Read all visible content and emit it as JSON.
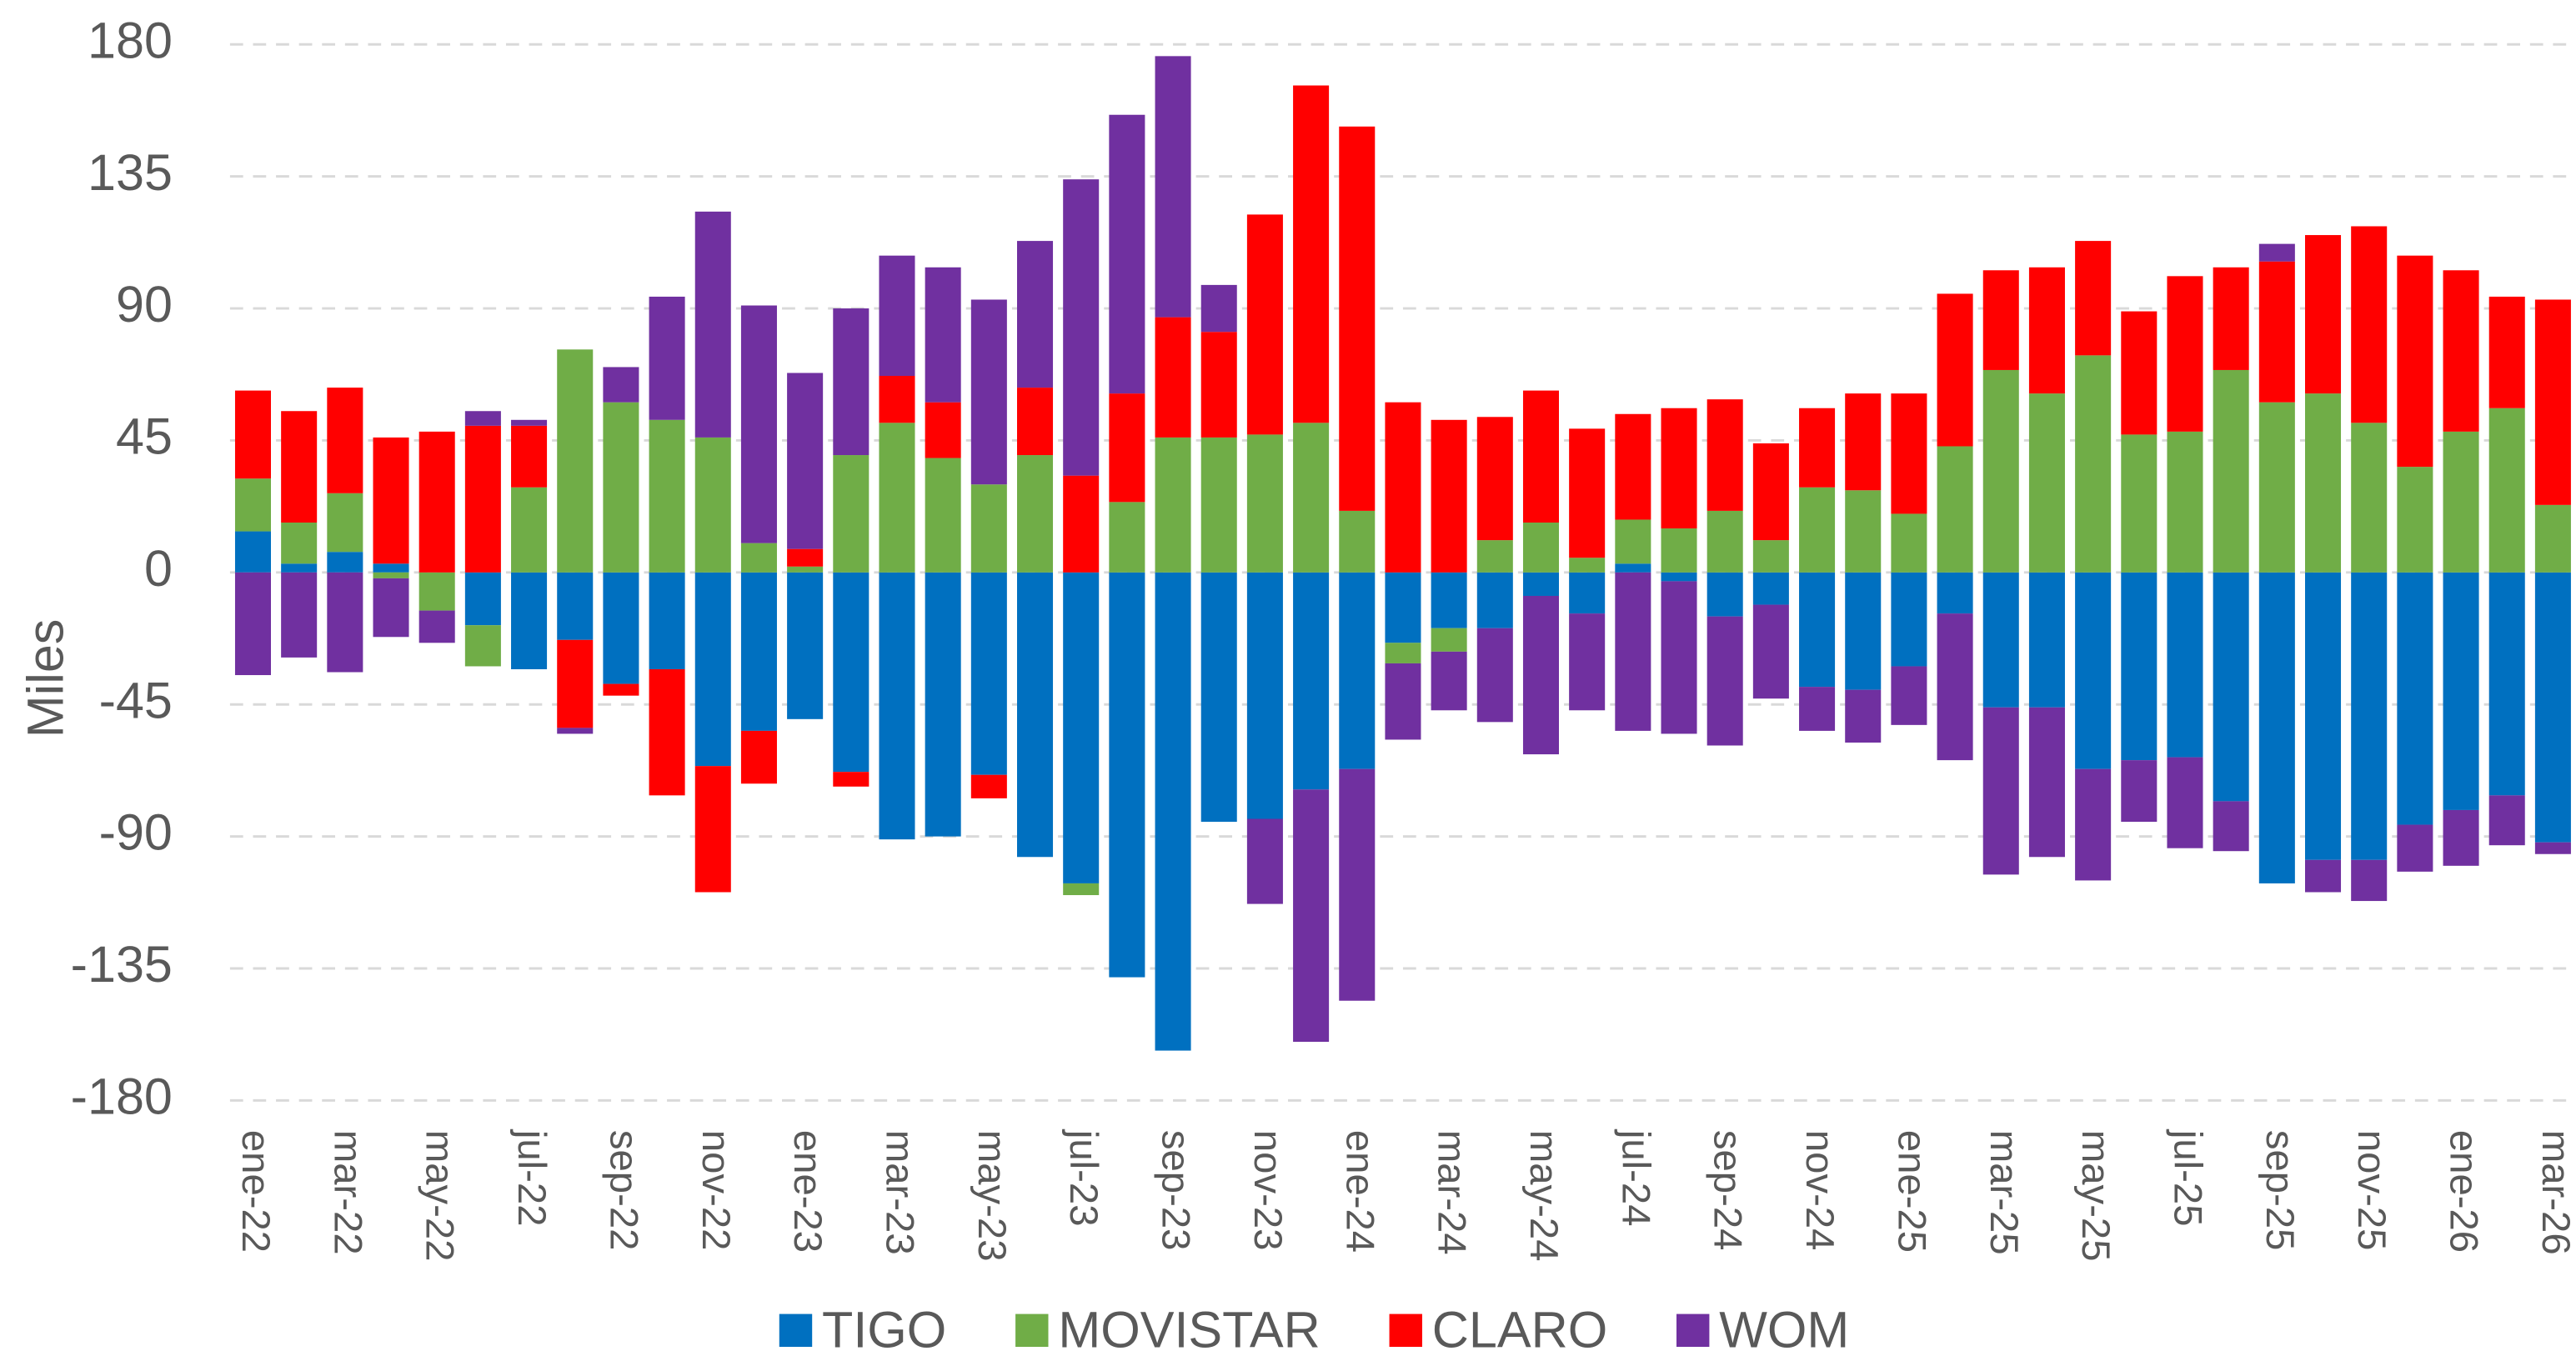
{
  "chart_data": {
    "type": "bar",
    "stacked": true,
    "y_label": "Miles",
    "categories": [
      "ene-22",
      null,
      "mar-22",
      null,
      "may-22",
      null,
      "jul-22",
      null,
      "sep-22",
      null,
      "nov-22",
      null,
      "ene-23",
      null,
      "mar-23",
      null,
      "may-23",
      null,
      "jul-23",
      null,
      "sep-23",
      null,
      "nov-23",
      null,
      "ene-24",
      null,
      "mar-24",
      null,
      "may-24",
      null,
      "jul-24",
      null,
      "sep-24",
      null,
      "nov-24",
      null,
      "ene-25",
      null,
      "mar-25",
      null,
      "may-25",
      null,
      "jul-25",
      null,
      "sep-25",
      null,
      "nov-25",
      null,
      "ene-26",
      null,
      "mar-26"
    ],
    "series": [
      {
        "name": "TIGO",
        "color": "#0070c0",
        "values": [
          14,
          3,
          7,
          3,
          0,
          -18,
          -33,
          -23,
          -38,
          -33,
          -66,
          -54,
          -50,
          -68,
          -91,
          -90,
          -69,
          -97,
          -106,
          -138,
          -163,
          -85,
          -84,
          -74,
          -67,
          -24,
          -19,
          -19,
          -8,
          -14,
          3,
          -3,
          -15,
          -11,
          -39,
          -40,
          -32,
          -14,
          -46,
          -46,
          -67,
          -64,
          -63,
          -78,
          -106,
          -98,
          -98,
          -86,
          -81,
          -76,
          -92
        ]
      },
      {
        "name": "MOVISTAR",
        "color": "#70ad47",
        "values": [
          18,
          14,
          20,
          -2,
          -13,
          -14,
          29,
          76,
          58,
          52,
          46,
          10,
          2,
          40,
          51,
          39,
          30,
          40,
          -4,
          24,
          46,
          46,
          47,
          51,
          21,
          -7,
          -8,
          11,
          17,
          5,
          15,
          15,
          21,
          11,
          29,
          28,
          20,
          43,
          69,
          61,
          74,
          47,
          48,
          69,
          58,
          61,
          51,
          36,
          48,
          56,
          23
        ]
      },
      {
        "name": "CLARO",
        "color": "#ff0000",
        "values": [
          30,
          38,
          36,
          43,
          48,
          50,
          21,
          -30,
          -4,
          -43,
          -43,
          -18,
          6,
          -5,
          16,
          19,
          -8,
          23,
          33,
          37,
          41,
          36,
          75,
          115,
          131,
          58,
          52,
          42,
          45,
          44,
          36,
          41,
          38,
          33,
          27,
          33,
          41,
          52,
          34,
          43,
          39,
          42,
          53,
          35,
          48,
          54,
          67,
          72,
          55,
          38,
          70
        ]
      },
      {
        "name": "WOM",
        "color": "#7030a0",
        "values": [
          -35,
          -29,
          -34,
          -20,
          -11,
          5,
          2,
          -2,
          12,
          42,
          77,
          81,
          60,
          50,
          41,
          46,
          63,
          50,
          101,
          95,
          89,
          16,
          -29,
          -86,
          -79,
          -26,
          -20,
          -32,
          -54,
          -33,
          -54,
          -52,
          -44,
          -32,
          -15,
          -18,
          -20,
          -50,
          -57,
          -51,
          -38,
          -21,
          -31,
          -17,
          6,
          -11,
          -14,
          -16,
          -19,
          -17,
          -4
        ]
      }
    ],
    "ylim": [
      -180,
      180
    ],
    "yticks": [
      -180,
      -135,
      -90,
      -45,
      0,
      45,
      90,
      135,
      180
    ],
    "grid": true,
    "legend": "bottom"
  }
}
